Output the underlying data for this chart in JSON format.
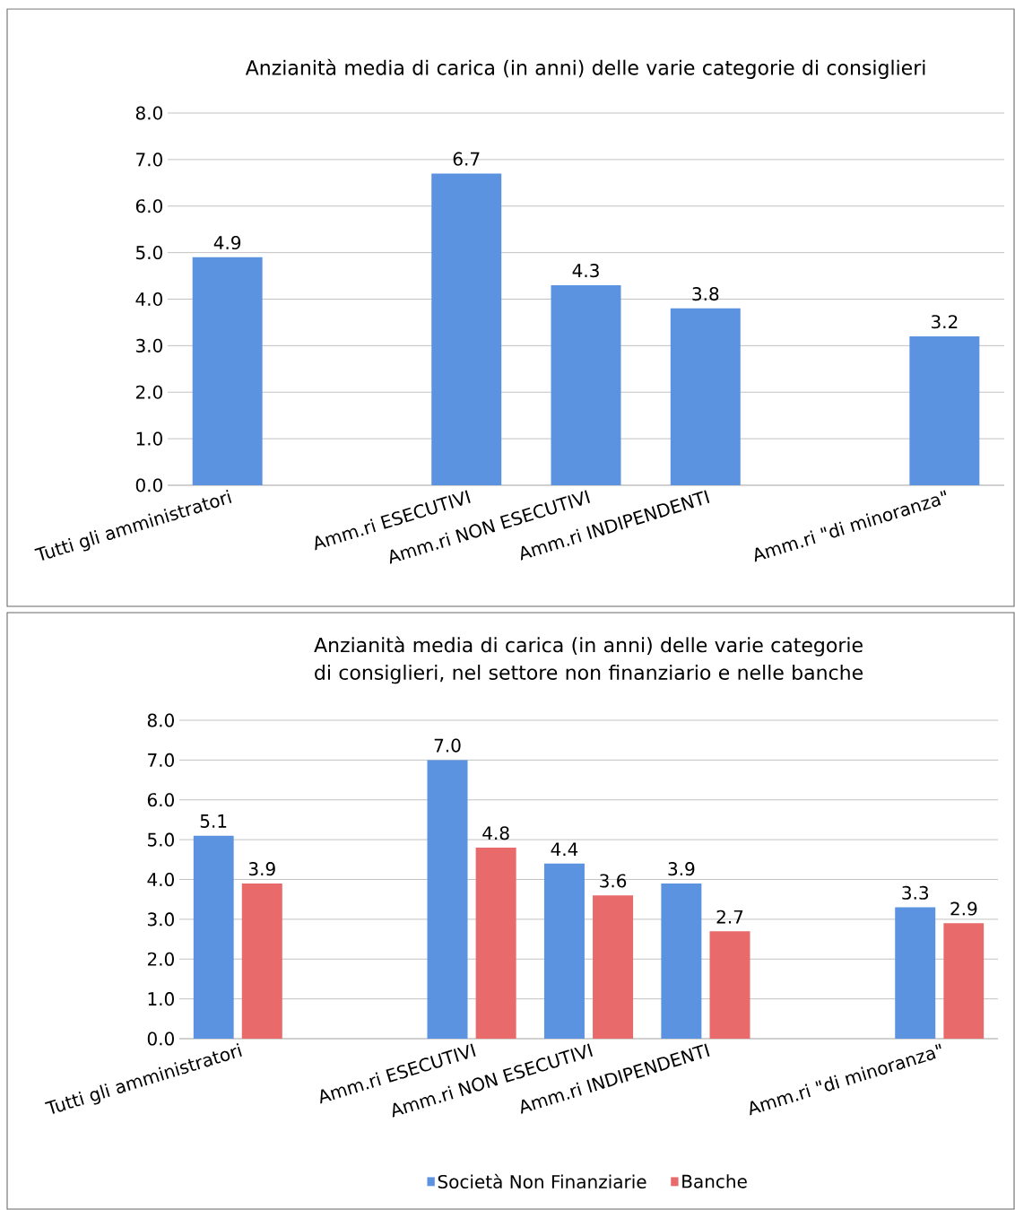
{
  "chart_data": [
    {
      "type": "bar",
      "title": "Anzianità media di carica (in anni) delle varie categorie di consiglieri",
      "categories": [
        "Tutti gli amministratori",
        null,
        "Amm.ri ESECUTIVI",
        "Amm.ri NON ESECUTIVI",
        "Amm.ri INDIPENDENTI",
        null,
        "Amm.ri \"di minoranza\""
      ],
      "series": [
        {
          "color": "#5b93e0",
          "values": [
            4.9,
            null,
            6.7,
            4.3,
            3.8,
            null,
            3.2
          ],
          "value_labels": [
            "4.9",
            null,
            "6.7",
            "4.3",
            "3.8",
            null,
            "3.2"
          ]
        }
      ],
      "ylim": [
        0,
        8
      ],
      "yticks": [
        {
          "value": 0,
          "label": "0.0"
        },
        {
          "value": 1,
          "label": "1.0"
        },
        {
          "value": 2,
          "label": "2.0"
        },
        {
          "value": 3,
          "label": "3.0"
        },
        {
          "value": 4,
          "label": "4.0"
        },
        {
          "value": 5,
          "label": "5.0"
        },
        {
          "value": 6,
          "label": "6.0"
        },
        {
          "value": 7,
          "label": "7.0"
        },
        {
          "value": 8,
          "label": "8.0"
        }
      ],
      "grid": "y"
    },
    {
      "type": "bar",
      "title": "Anzianità media di carica (in anni) delle varie categorie di consiglieri, nel settore non finanziario e nelle banche",
      "categories": [
        "Tutti gli amministratori",
        null,
        "Amm.ri ESECUTIVI",
        "Amm.ri NON ESECUTIVI",
        "Amm.ri INDIPENDENTI",
        null,
        "Amm.ri \"di minoranza\""
      ],
      "series": [
        {
          "name": "Società Non Finanziarie",
          "color": "#5b93e0",
          "values": [
            5.1,
            null,
            7.0,
            4.4,
            3.9,
            null,
            3.3
          ],
          "value_labels": [
            "5.1",
            null,
            "7.0",
            "4.4",
            "3.9",
            null,
            "3.3"
          ]
        },
        {
          "name": "Banche",
          "color": "#e86a6a",
          "values": [
            3.9,
            null,
            4.8,
            3.6,
            2.7,
            null,
            2.9
          ],
          "value_labels": [
            "3.9",
            null,
            "4.8",
            "3.6",
            "2.7",
            null,
            "2.9"
          ]
        }
      ],
      "ylim": [
        0,
        8
      ],
      "yticks": [
        {
          "value": 0,
          "label": "0.0"
        },
        {
          "value": 1,
          "label": "1.0"
        },
        {
          "value": 2,
          "label": "2.0"
        },
        {
          "value": 3,
          "label": "3.0"
        },
        {
          "value": 4,
          "label": "4.0"
        },
        {
          "value": 5,
          "label": "5.0"
        },
        {
          "value": 6,
          "label": "6.0"
        },
        {
          "value": 7,
          "label": "7.0"
        },
        {
          "value": 8,
          "label": "8.0"
        }
      ],
      "grid": "y",
      "legend": "bottom"
    }
  ]
}
